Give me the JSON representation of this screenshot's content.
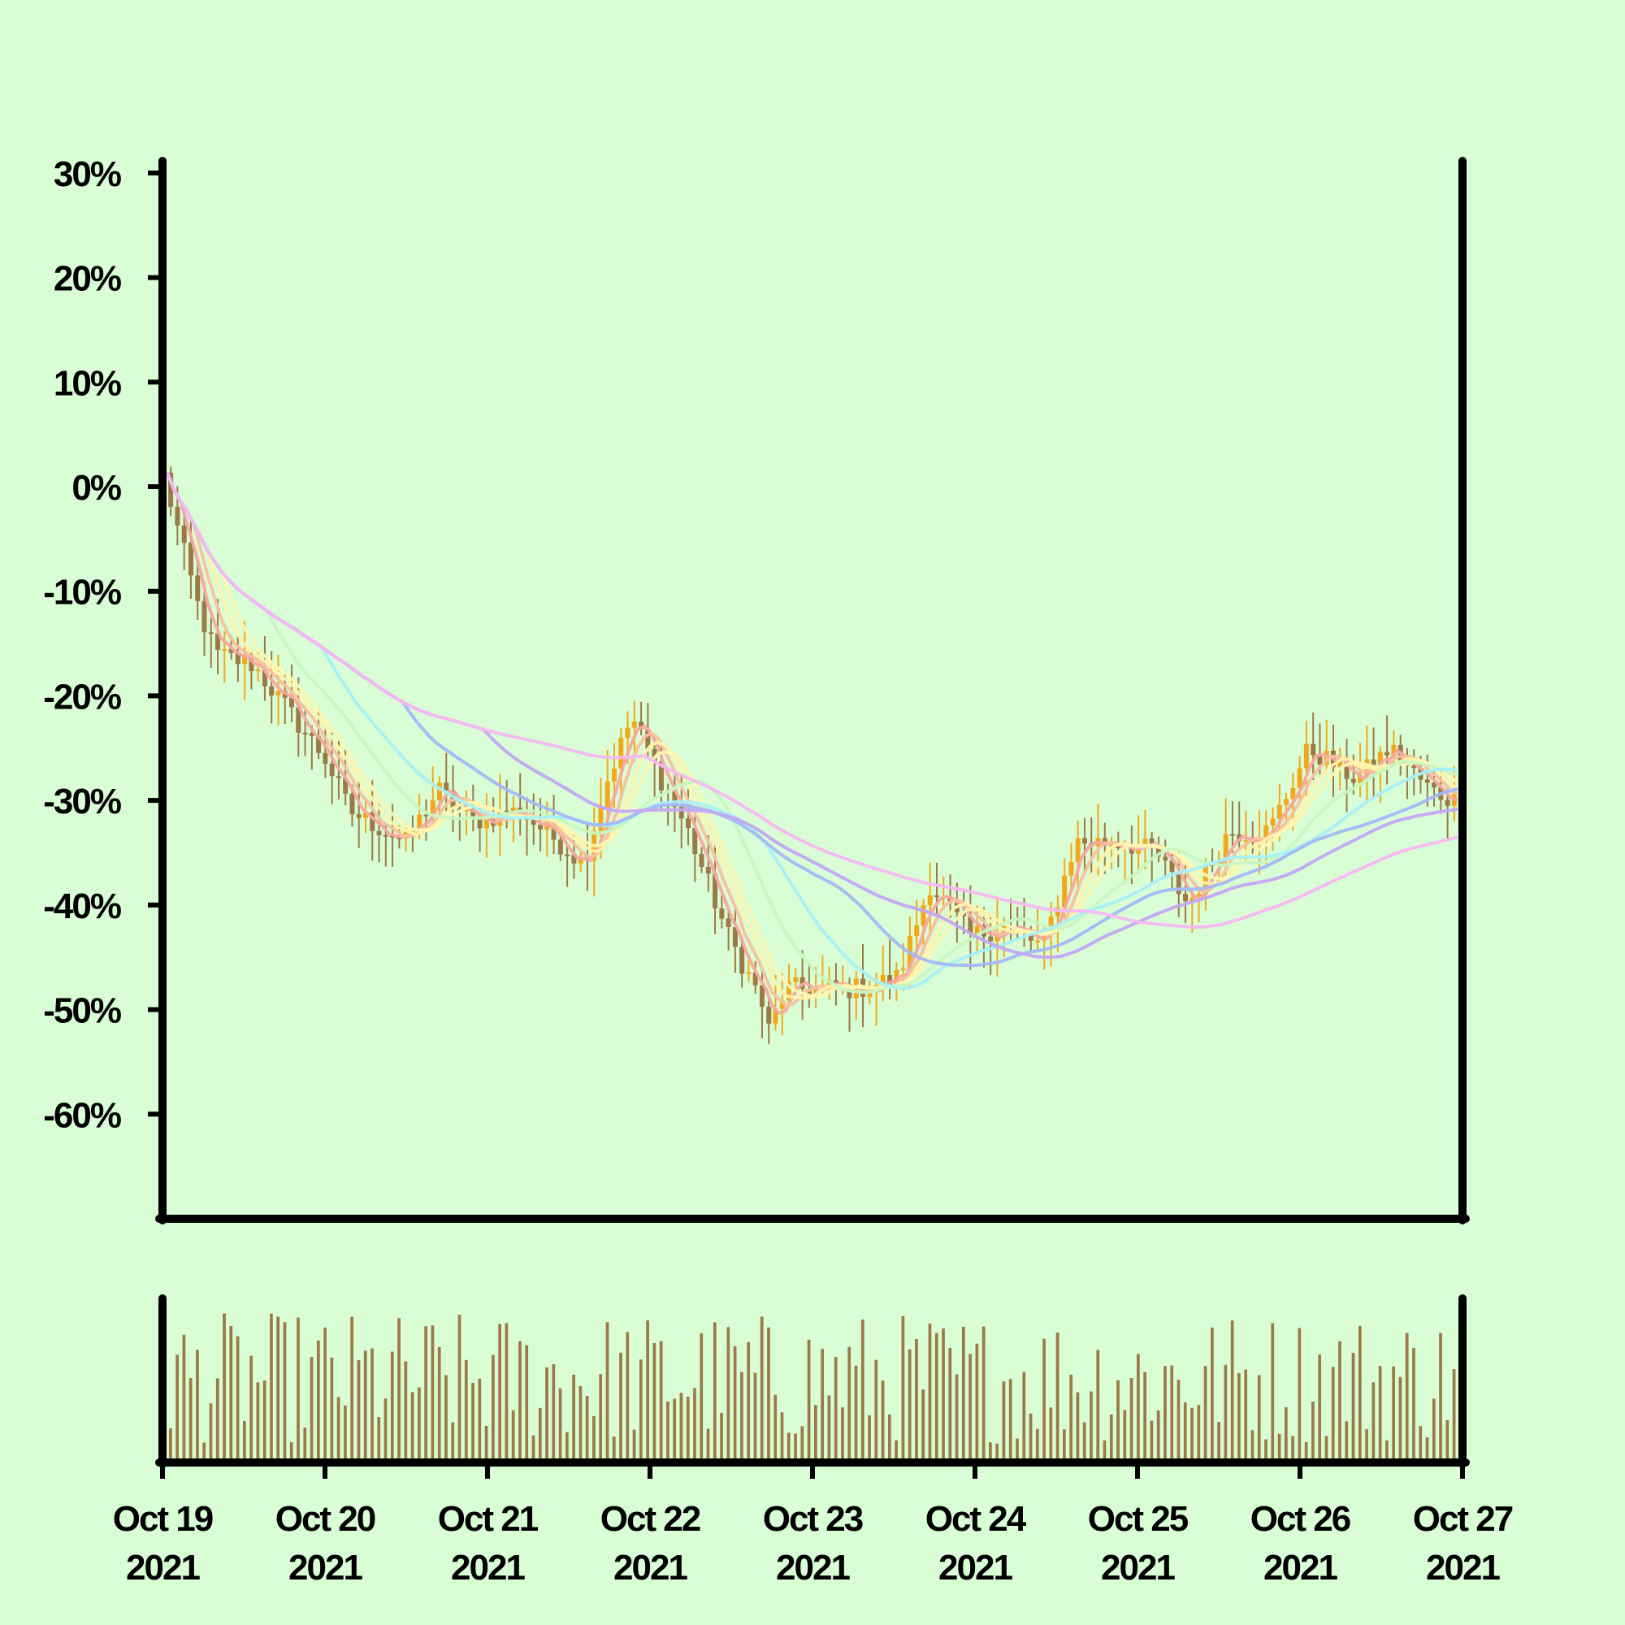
{
  "chart_data": {
    "type": "candlestick",
    "title": "",
    "xlabel": "",
    "ylabel": "",
    "y_unit": "%",
    "ylim": [
      -70,
      31
    ],
    "yticks": [
      "30%",
      "20%",
      "10%",
      "0%",
      "-10%",
      "-20%",
      "-30%",
      "-40%",
      "-50%",
      "-60%"
    ],
    "ytick_values": [
      30,
      20,
      10,
      0,
      -10,
      -20,
      -30,
      -40,
      -50,
      -60
    ],
    "x_range": [
      "2021-10-19",
      "2021-10-27"
    ],
    "xticks": [
      {
        "date": "2021-10-19",
        "line1": "Oct 19",
        "line2": "2021"
      },
      {
        "date": "2021-10-20",
        "line1": "Oct 20",
        "line2": "2021"
      },
      {
        "date": "2021-10-21",
        "line1": "Oct 21",
        "line2": "2021"
      },
      {
        "date": "2021-10-22",
        "line1": "Oct 22",
        "line2": "2021"
      },
      {
        "date": "2021-10-23",
        "line1": "Oct 23",
        "line2": "2021"
      },
      {
        "date": "2021-10-24",
        "line1": "Oct 24",
        "line2": "2021"
      },
      {
        "date": "2021-10-25",
        "line1": "Oct 25",
        "line2": "2021"
      },
      {
        "date": "2021-10-26",
        "line1": "Oct 26",
        "line2": "2021"
      },
      {
        "date": "2021-10-27",
        "line1": "Oct 27",
        "line2": "2021"
      }
    ],
    "grid": false,
    "legend": "none",
    "candles_per_day": 24,
    "colors": {
      "background": "#d9fdd5",
      "candle_up": "#f2a818",
      "candle_down": "#9b7a46",
      "volume": "#9b7a46",
      "axis": "#000000"
    },
    "close_anchors": [
      {
        "day": 0.0,
        "value": 1
      },
      {
        "day": 0.1,
        "value": -5
      },
      {
        "day": 0.22,
        "value": -12
      },
      {
        "day": 0.32,
        "value": -16
      },
      {
        "day": 0.55,
        "value": -17
      },
      {
        "day": 0.75,
        "value": -21
      },
      {
        "day": 1.0,
        "value": -26
      },
      {
        "day": 1.15,
        "value": -31
      },
      {
        "day": 1.5,
        "value": -34
      },
      {
        "day": 1.7,
        "value": -29
      },
      {
        "day": 1.9,
        "value": -32
      },
      {
        "day": 2.2,
        "value": -31
      },
      {
        "day": 2.45,
        "value": -34
      },
      {
        "day": 2.6,
        "value": -36
      },
      {
        "day": 2.75,
        "value": -28
      },
      {
        "day": 2.9,
        "value": -22
      },
      {
        "day": 3.05,
        "value": -27
      },
      {
        "day": 3.25,
        "value": -33
      },
      {
        "day": 3.5,
        "value": -43
      },
      {
        "day": 3.7,
        "value": -49
      },
      {
        "day": 3.75,
        "value": -52
      },
      {
        "day": 3.85,
        "value": -48
      },
      {
        "day": 4.3,
        "value": -48
      },
      {
        "day": 4.55,
        "value": -47
      },
      {
        "day": 4.75,
        "value": -38
      },
      {
        "day": 5.0,
        "value": -43
      },
      {
        "day": 5.2,
        "value": -42
      },
      {
        "day": 5.45,
        "value": -44
      },
      {
        "day": 5.65,
        "value": -34
      },
      {
        "day": 5.95,
        "value": -34
      },
      {
        "day": 6.15,
        "value": -35
      },
      {
        "day": 6.35,
        "value": -40
      },
      {
        "day": 6.6,
        "value": -33
      },
      {
        "day": 6.85,
        "value": -33
      },
      {
        "day": 7.1,
        "value": -25
      },
      {
        "day": 7.4,
        "value": -28
      },
      {
        "day": 7.6,
        "value": -25
      },
      {
        "day": 7.85,
        "value": -29
      },
      {
        "day": 8.0,
        "value": -30
      }
    ],
    "moving_averages": [
      {
        "color": "#f7a8a0",
        "window": 3
      },
      {
        "color": "#f9c09e",
        "window": 5
      },
      {
        "color": "#fff3a8",
        "window": 7
      },
      {
        "color": "#fcf7b2",
        "window": 9
      },
      {
        "color": "#c7f7c2",
        "window": 16
      },
      {
        "color": "#a7f1f5",
        "window": 24
      },
      {
        "color": "#a4b8f5",
        "window": 36
      },
      {
        "color": "#c3a7f4",
        "window": 48
      },
      {
        "color": "#f5b8f2",
        "window": 72
      }
    ],
    "volume": {
      "min": 1,
      "max": 10
    }
  }
}
